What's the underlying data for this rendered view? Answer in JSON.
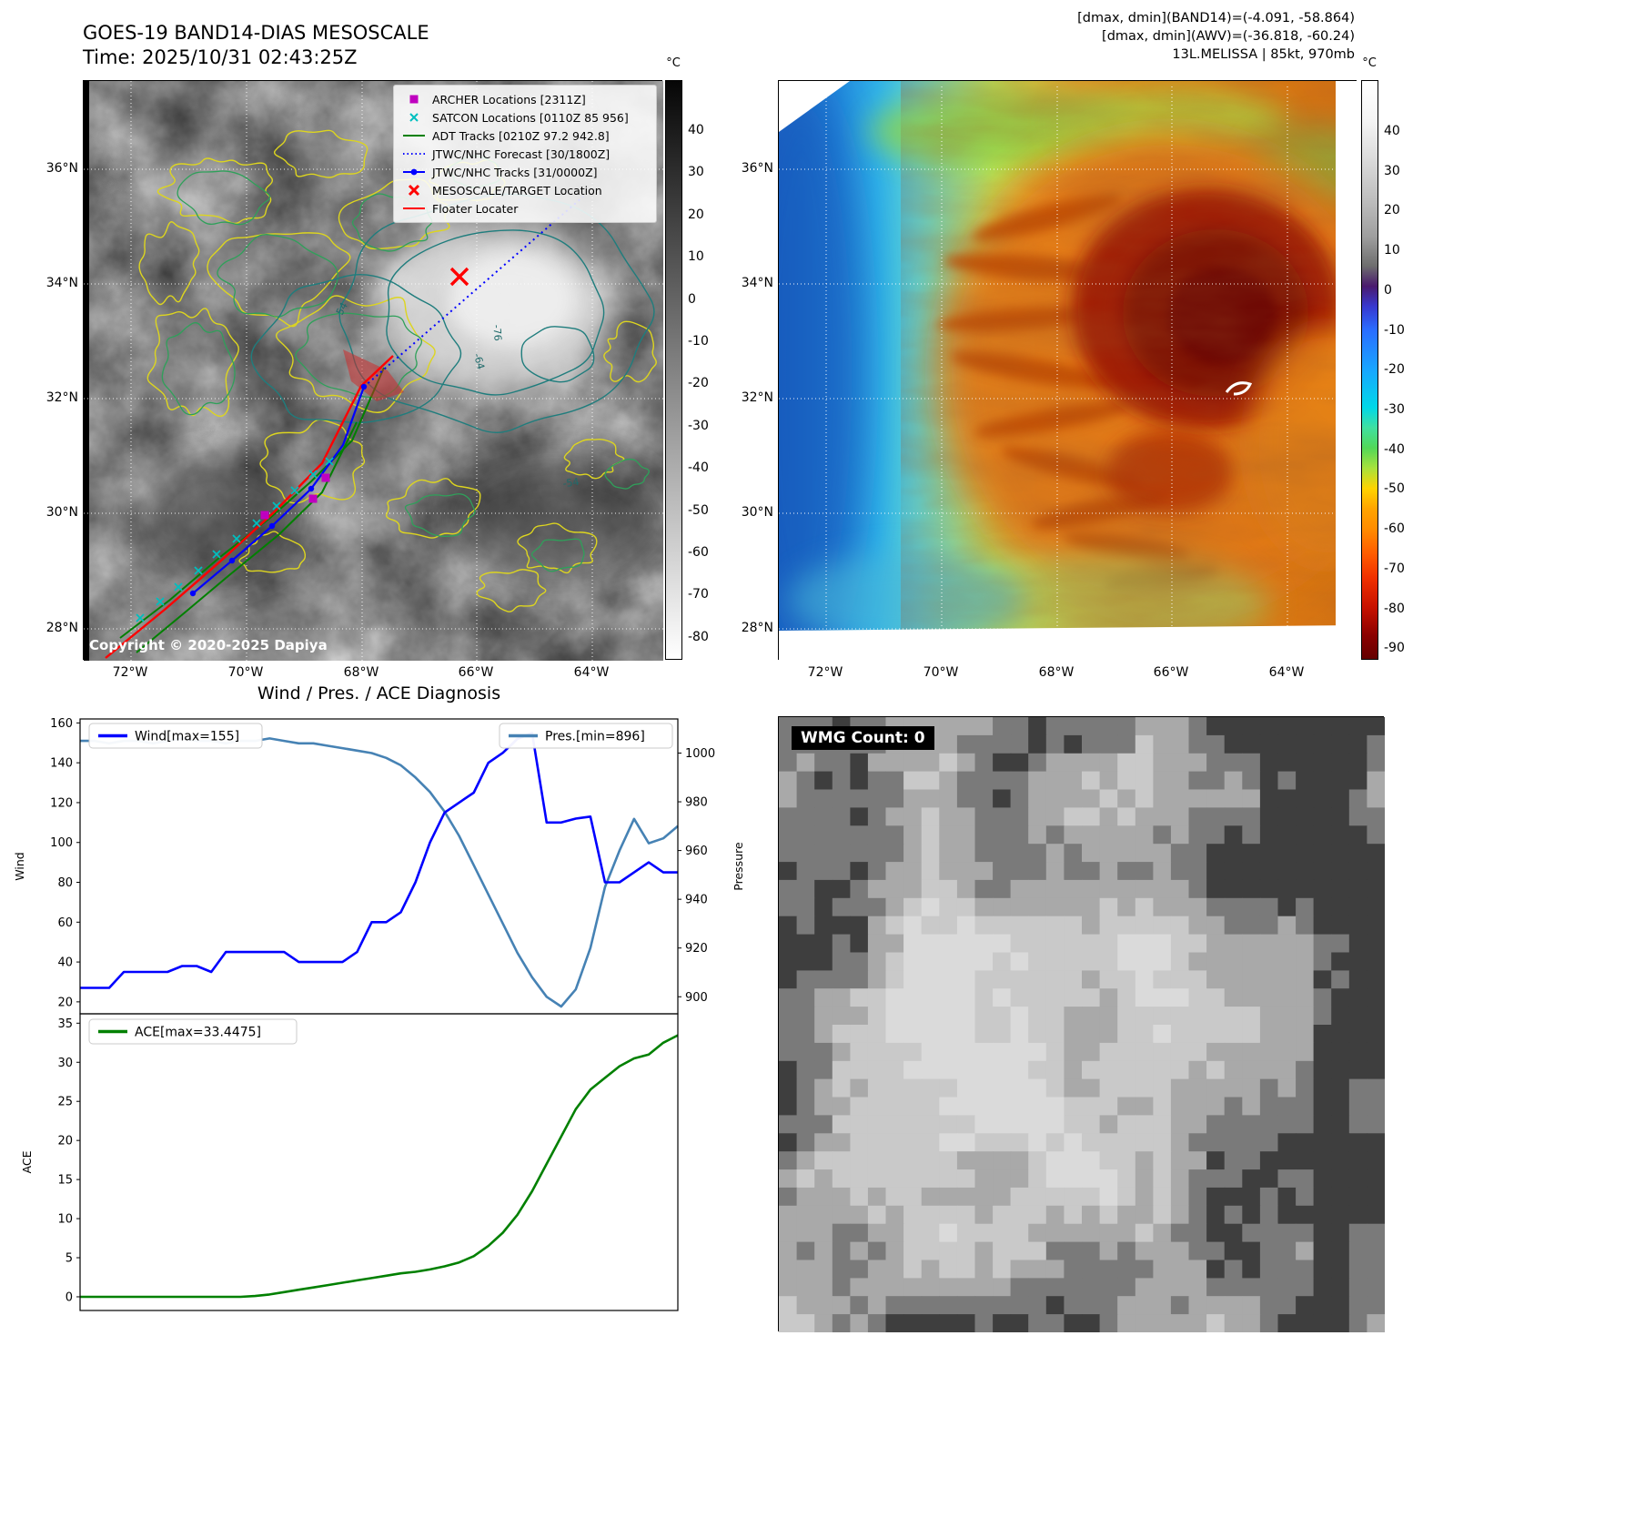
{
  "band14_panel": {
    "title": "GOES-19 BAND14-DIAS MESOSCALE",
    "time_line": "Time: 2025/10/31 02:43:25Z",
    "copyright": "Copyright © 2020-2025 Dapiya",
    "colorbar": {
      "unit": "°C",
      "ticks": [
        40,
        30,
        20,
        10,
        0,
        -10,
        -20,
        -30,
        -40,
        -50,
        -60,
        -70,
        -80
      ]
    },
    "lat_labels": [
      "36°N",
      "34°N",
      "32°N",
      "30°N",
      "28°N"
    ],
    "lon_labels": [
      "72°W",
      "70°W",
      "68°W",
      "66°W",
      "64°W"
    ],
    "contour_labels": [
      "54",
      "-76",
      "-64",
      "-54"
    ],
    "legend": [
      {
        "label": "ARCHER Locations [2311Z]",
        "marker": "square",
        "color": "#bf00bf"
      },
      {
        "label": "SATCON Locations [0110Z 85 956]",
        "marker": "x",
        "color": "#00bfbf"
      },
      {
        "label": "ADT Tracks [0210Z 97.2 942.8]",
        "marker": "line",
        "color": "#008000"
      },
      {
        "label": "JTWC/NHC Forecast [30/1800Z]",
        "marker": "dotted-line",
        "color": "#0000ff"
      },
      {
        "label": "JTWC/NHC Tracks [31/0000Z]",
        "marker": "line-dot",
        "color": "#0000ff"
      },
      {
        "label": "MESOSCALE/TARGET Location",
        "marker": "bold-x",
        "color": "#ff0000"
      },
      {
        "label": "Floater Locater",
        "marker": "line",
        "color": "#ff0000"
      }
    ]
  },
  "awv_panel": {
    "annotation_lines": [
      "[dmax, dmin](BAND14)=(-4.091, -58.864)",
      "[dmax, dmin](AWV)=(-36.818, -60.24)",
      "13L.MELISSA | 85kt, 970mb"
    ],
    "colorbar": {
      "unit": "°C",
      "ticks": [
        40,
        30,
        20,
        10,
        0,
        -10,
        -20,
        -30,
        -40,
        -50,
        -60,
        -70,
        -80,
        -90
      ]
    },
    "lat_labels": [
      "36°N",
      "34°N",
      "32°N",
      "30°N",
      "28°N"
    ],
    "lon_labels": [
      "72°W",
      "70°W",
      "68°W",
      "66°W",
      "64°W"
    ]
  },
  "diagnosis_panel": {
    "title": "Wind / Pres. / ACE Diagnosis"
  },
  "wmg_panel": {
    "count_label": "WMG Count: 0",
    "palette": [
      "#3e3e3e",
      "#7a7a7a",
      "#a9a9a9",
      "#c9c9c9",
      "#dadada"
    ]
  },
  "chart_data": [
    {
      "type": "line",
      "title": "Wind / Pres. / ACE Diagnosis (upper: wind and pressure vs time)",
      "x": "time steps (unlabeled axis, 42 samples)",
      "series": [
        {
          "name": "Wind[max=155]",
          "color": "#0000ff",
          "axis": "left",
          "values": [
            27,
            27,
            27,
            35,
            35,
            35,
            35,
            38,
            38,
            35,
            45,
            45,
            45,
            45,
            45,
            40,
            40,
            40,
            40,
            45,
            60,
            60,
            65,
            80,
            100,
            115,
            120,
            125,
            140,
            145,
            152,
            155,
            110,
            110,
            112,
            113,
            80,
            80,
            85,
            90,
            85,
            85
          ]
        },
        {
          "name": "Pres.[min=896]",
          "color": "#4682b4",
          "axis": "right",
          "values": [
            1005,
            1005,
            1004,
            1005,
            1005,
            1004,
            1005,
            1006,
            1005,
            1005,
            1004,
            1005,
            1005,
            1006,
            1005,
            1004,
            1004,
            1003,
            1002,
            1001,
            1000,
            998,
            995,
            990,
            984,
            976,
            966,
            954,
            942,
            930,
            918,
            908,
            900,
            896,
            903,
            920,
            945,
            960,
            973,
            963,
            965,
            970
          ]
        }
      ],
      "ylabel_left": "Wind",
      "yticks_left": [
        20,
        40,
        60,
        80,
        100,
        120,
        140,
        160
      ],
      "ylim_left": [
        14,
        162
      ],
      "ylabel_right": "Pressure",
      "yticks_right": [
        900,
        920,
        940,
        960,
        980,
        1000
      ],
      "ylim_right": [
        893,
        1014
      ],
      "grid": false,
      "legend_position": "upper-left and upper-right"
    },
    {
      "type": "line",
      "title": "Wind / Pres. / ACE Diagnosis (lower: accumulated cyclone energy vs time)",
      "x": "time steps (unlabeled axis, 42 samples)",
      "series": [
        {
          "name": "ACE[max=33.4475]",
          "color": "#008000",
          "values": [
            0,
            0,
            0,
            0,
            0,
            0,
            0,
            0,
            0,
            0,
            0,
            0,
            0.1,
            0.3,
            0.6,
            0.9,
            1.2,
            1.5,
            1.8,
            2.1,
            2.4,
            2.7,
            3.0,
            3.2,
            3.5,
            3.9,
            4.4,
            5.2,
            6.5,
            8.2,
            10.5,
            13.5,
            17,
            20.5,
            24,
            26.5,
            28,
            29.5,
            30.5,
            31,
            32.5,
            33.4475
          ]
        }
      ],
      "ylabel": "ACE",
      "yticks": [
        0,
        5,
        10,
        15,
        20,
        25,
        30,
        35
      ],
      "ylim": [
        -1.75,
        36.2
      ],
      "grid": false,
      "legend_position": "upper-left"
    }
  ]
}
